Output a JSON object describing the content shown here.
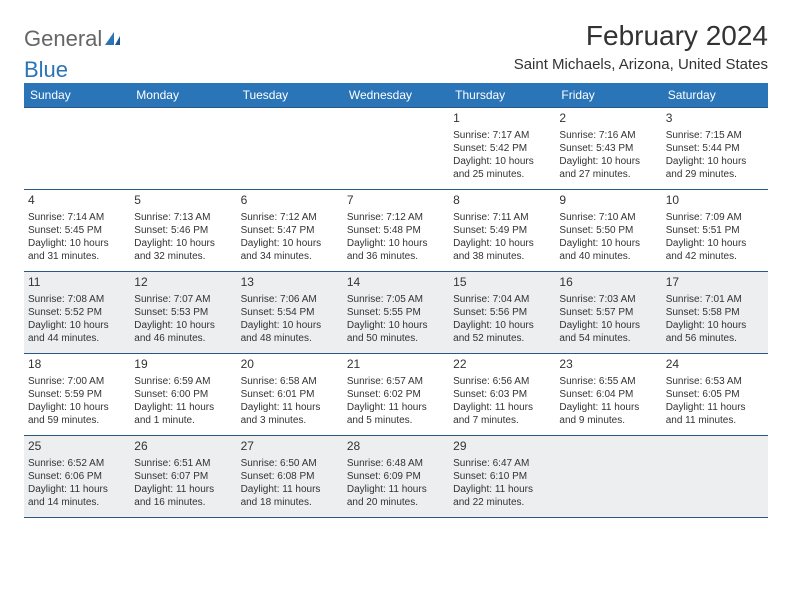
{
  "logo": {
    "text1": "General",
    "text2": "Blue"
  },
  "title": "February 2024",
  "location": "Saint Michaels, Arizona, United States",
  "colors": {
    "header_bg": "#2a74b8",
    "header_fg": "#ffffff",
    "border": "#2a5788",
    "shade": "#eceef0",
    "page_bg": "#ffffff",
    "text": "#333333"
  },
  "day_headers": [
    "Sunday",
    "Monday",
    "Tuesday",
    "Wednesday",
    "Thursday",
    "Friday",
    "Saturday"
  ],
  "weeks": [
    [
      null,
      null,
      null,
      null,
      {
        "n": "1",
        "sr": "Sunrise: 7:17 AM",
        "ss": "Sunset: 5:42 PM",
        "dl": "Daylight: 10 hours and 25 minutes."
      },
      {
        "n": "2",
        "sr": "Sunrise: 7:16 AM",
        "ss": "Sunset: 5:43 PM",
        "dl": "Daylight: 10 hours and 27 minutes."
      },
      {
        "n": "3",
        "sr": "Sunrise: 7:15 AM",
        "ss": "Sunset: 5:44 PM",
        "dl": "Daylight: 10 hours and 29 minutes."
      }
    ],
    [
      {
        "n": "4",
        "sr": "Sunrise: 7:14 AM",
        "ss": "Sunset: 5:45 PM",
        "dl": "Daylight: 10 hours and 31 minutes."
      },
      {
        "n": "5",
        "sr": "Sunrise: 7:13 AM",
        "ss": "Sunset: 5:46 PM",
        "dl": "Daylight: 10 hours and 32 minutes."
      },
      {
        "n": "6",
        "sr": "Sunrise: 7:12 AM",
        "ss": "Sunset: 5:47 PM",
        "dl": "Daylight: 10 hours and 34 minutes."
      },
      {
        "n": "7",
        "sr": "Sunrise: 7:12 AM",
        "ss": "Sunset: 5:48 PM",
        "dl": "Daylight: 10 hours and 36 minutes."
      },
      {
        "n": "8",
        "sr": "Sunrise: 7:11 AM",
        "ss": "Sunset: 5:49 PM",
        "dl": "Daylight: 10 hours and 38 minutes."
      },
      {
        "n": "9",
        "sr": "Sunrise: 7:10 AM",
        "ss": "Sunset: 5:50 PM",
        "dl": "Daylight: 10 hours and 40 minutes."
      },
      {
        "n": "10",
        "sr": "Sunrise: 7:09 AM",
        "ss": "Sunset: 5:51 PM",
        "dl": "Daylight: 10 hours and 42 minutes."
      }
    ],
    [
      {
        "n": "11",
        "sr": "Sunrise: 7:08 AM",
        "ss": "Sunset: 5:52 PM",
        "dl": "Daylight: 10 hours and 44 minutes."
      },
      {
        "n": "12",
        "sr": "Sunrise: 7:07 AM",
        "ss": "Sunset: 5:53 PM",
        "dl": "Daylight: 10 hours and 46 minutes."
      },
      {
        "n": "13",
        "sr": "Sunrise: 7:06 AM",
        "ss": "Sunset: 5:54 PM",
        "dl": "Daylight: 10 hours and 48 minutes."
      },
      {
        "n": "14",
        "sr": "Sunrise: 7:05 AM",
        "ss": "Sunset: 5:55 PM",
        "dl": "Daylight: 10 hours and 50 minutes."
      },
      {
        "n": "15",
        "sr": "Sunrise: 7:04 AM",
        "ss": "Sunset: 5:56 PM",
        "dl": "Daylight: 10 hours and 52 minutes."
      },
      {
        "n": "16",
        "sr": "Sunrise: 7:03 AM",
        "ss": "Sunset: 5:57 PM",
        "dl": "Daylight: 10 hours and 54 minutes."
      },
      {
        "n": "17",
        "sr": "Sunrise: 7:01 AM",
        "ss": "Sunset: 5:58 PM",
        "dl": "Daylight: 10 hours and 56 minutes."
      }
    ],
    [
      {
        "n": "18",
        "sr": "Sunrise: 7:00 AM",
        "ss": "Sunset: 5:59 PM",
        "dl": "Daylight: 10 hours and 59 minutes."
      },
      {
        "n": "19",
        "sr": "Sunrise: 6:59 AM",
        "ss": "Sunset: 6:00 PM",
        "dl": "Daylight: 11 hours and 1 minute."
      },
      {
        "n": "20",
        "sr": "Sunrise: 6:58 AM",
        "ss": "Sunset: 6:01 PM",
        "dl": "Daylight: 11 hours and 3 minutes."
      },
      {
        "n": "21",
        "sr": "Sunrise: 6:57 AM",
        "ss": "Sunset: 6:02 PM",
        "dl": "Daylight: 11 hours and 5 minutes."
      },
      {
        "n": "22",
        "sr": "Sunrise: 6:56 AM",
        "ss": "Sunset: 6:03 PM",
        "dl": "Daylight: 11 hours and 7 minutes."
      },
      {
        "n": "23",
        "sr": "Sunrise: 6:55 AM",
        "ss": "Sunset: 6:04 PM",
        "dl": "Daylight: 11 hours and 9 minutes."
      },
      {
        "n": "24",
        "sr": "Sunrise: 6:53 AM",
        "ss": "Sunset: 6:05 PM",
        "dl": "Daylight: 11 hours and 11 minutes."
      }
    ],
    [
      {
        "n": "25",
        "sr": "Sunrise: 6:52 AM",
        "ss": "Sunset: 6:06 PM",
        "dl": "Daylight: 11 hours and 14 minutes."
      },
      {
        "n": "26",
        "sr": "Sunrise: 6:51 AM",
        "ss": "Sunset: 6:07 PM",
        "dl": "Daylight: 11 hours and 16 minutes."
      },
      {
        "n": "27",
        "sr": "Sunrise: 6:50 AM",
        "ss": "Sunset: 6:08 PM",
        "dl": "Daylight: 11 hours and 18 minutes."
      },
      {
        "n": "28",
        "sr": "Sunrise: 6:48 AM",
        "ss": "Sunset: 6:09 PM",
        "dl": "Daylight: 11 hours and 20 minutes."
      },
      {
        "n": "29",
        "sr": "Sunrise: 6:47 AM",
        "ss": "Sunset: 6:10 PM",
        "dl": "Daylight: 11 hours and 22 minutes."
      },
      null,
      null
    ]
  ],
  "shaded_weeks": [
    2,
    4
  ]
}
